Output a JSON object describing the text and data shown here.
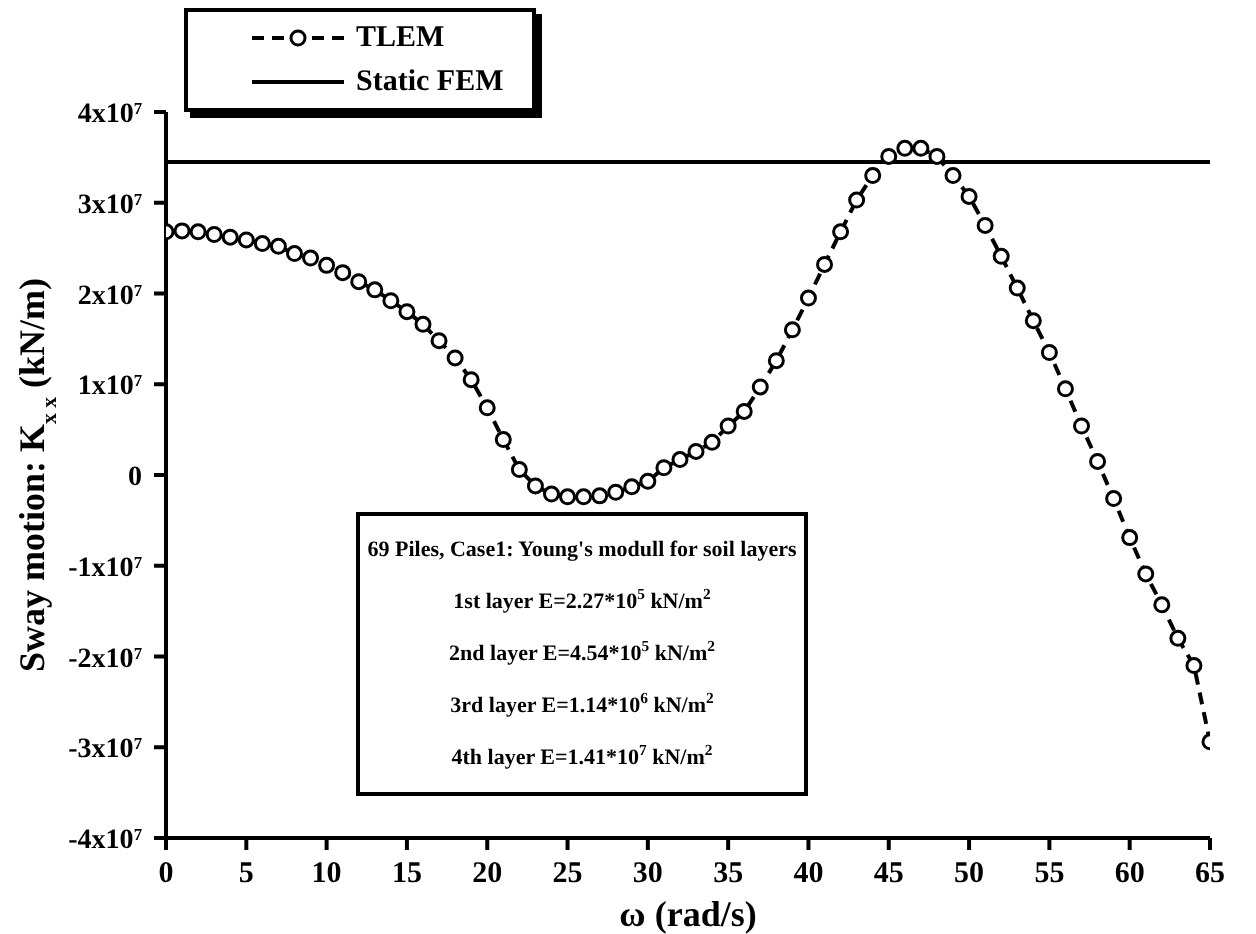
{
  "chart_data": {
    "type": "line",
    "xlabel": "ω (rad/s)",
    "ylabel": "Sway motion:  K$_{x x}$ (kN/m)",
    "x": [
      0,
      1,
      2,
      3,
      4,
      5,
      6,
      7,
      8,
      9,
      10,
      11,
      12,
      13,
      14,
      15,
      16,
      17,
      18,
      19,
      20,
      21,
      22,
      23,
      24,
      25,
      26,
      27,
      28,
      29,
      30,
      31,
      32,
      33,
      34,
      35,
      36,
      37,
      38,
      39,
      40,
      41,
      42,
      43,
      44,
      45,
      46,
      47,
      48,
      49,
      50,
      51,
      52,
      53,
      54,
      55,
      56,
      57,
      58,
      59,
      60,
      61,
      62,
      63,
      64,
      65
    ],
    "series": [
      {
        "name": "TLEM",
        "color": "#000000",
        "line_style": "dashed",
        "marker": "circle",
        "values": [
          26800000,
          26900000,
          26800000,
          26500000,
          26200000,
          25900000,
          25500000,
          25200000,
          24400000,
          23900000,
          23100000,
          22300000,
          21300000,
          20400000,
          19200000,
          18000000,
          16600000,
          14800000,
          12900000,
          10500000,
          7400000,
          3900000,
          600000,
          -1200000,
          -2100000,
          -2400000,
          -2400000,
          -2300000,
          -1900000,
          -1300000,
          -700000,
          800000,
          1700000,
          2600000,
          3600000,
          5400000,
          7000000,
          9700000,
          12600000,
          16000000,
          19500000,
          23200000,
          26800000,
          30300000,
          33000000,
          35100000,
          36000000,
          36000000,
          35100000,
          33000000,
          30700000,
          27500000,
          24100000,
          20600000,
          17000000,
          13500000,
          9500000,
          5400000,
          1500000,
          -2600000,
          -6900000,
          -10900000,
          -14300000,
          -18000000,
          -21000000,
          -29400000
        ]
      },
      {
        "name": "Static FEM",
        "color": "#000000",
        "line_style": "solid",
        "marker": "none",
        "x": [
          0,
          65
        ],
        "values": [
          34500000,
          34500000
        ]
      }
    ],
    "xlim": [
      0,
      65
    ],
    "xticks": [
      0,
      5,
      10,
      15,
      20,
      25,
      30,
      35,
      40,
      45,
      50,
      55,
      60,
      65
    ],
    "ylim": [
      -40000000,
      40000000
    ],
    "yticks": [
      {
        "value": -40000000,
        "label": "-4x10$^{7}$"
      },
      {
        "value": -30000000,
        "label": "-3x10$^{7}$"
      },
      {
        "value": -20000000,
        "label": "-2x10$^{7}$"
      },
      {
        "value": -10000000,
        "label": "-1x10$^{7}$"
      },
      0,
      {
        "value": 10000000,
        "label": "1x10$^{7}$"
      },
      {
        "value": 20000000,
        "label": "2x10$^{7}$"
      },
      {
        "value": 30000000,
        "label": "3x10$^{7}$"
      },
      {
        "value": 40000000,
        "label": "4x10$^{7}$"
      }
    ],
    "grid": false,
    "legend": "top left",
    "annotations": [
      "69 Piles, Case1: Young's modull for soil layers",
      "1st layer E=2.27*10$^{5}$ kN/m$^{2}$",
      "2nd layer E=4.54*10$^{5}$ kN/m$^{2}$",
      "3rd layer E=1.14*10$^{6}$ kN/m$^{2}$",
      "4th layer E=1.41*10$^{7}$ kN/m$^{2}$"
    ]
  }
}
